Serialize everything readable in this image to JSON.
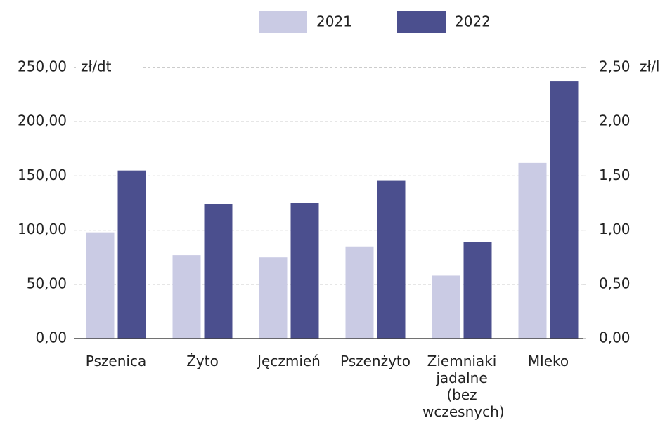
{
  "chart_data": {
    "type": "bar",
    "categories": [
      "Pszenica",
      "Żyto",
      "Jęczmień",
      "Pszenżyto",
      "Ziemniaki jadalne (bez wczesnych)",
      "Mleko"
    ],
    "category_axis": [
      "y",
      "y",
      "y",
      "y",
      "y",
      "y2"
    ],
    "series": [
      {
        "name": "2021",
        "color": "#cacbe4",
        "values": [
          98,
          77,
          75,
          85,
          58,
          1.62
        ]
      },
      {
        "name": "2022",
        "color": "#4b4f8e",
        "values": [
          155,
          124,
          125,
          146,
          89,
          2.37
        ]
      }
    ],
    "y_unit": "zł/dt",
    "y2_unit": "zł/l",
    "ylim": [
      0,
      250
    ],
    "yticks": [
      {
        "value": 0,
        "label": "0,00"
      },
      {
        "value": 50,
        "label": "50,00"
      },
      {
        "value": 100,
        "label": "100,00"
      },
      {
        "value": 150,
        "label": "150,00"
      },
      {
        "value": 200,
        "label": "200,00"
      },
      {
        "value": 250,
        "label": "250,00"
      }
    ],
    "y2lim": [
      0,
      2.5
    ],
    "y2ticks": [
      {
        "value": 0,
        "label": "0,00"
      },
      {
        "value": 0.5,
        "label": "0,50"
      },
      {
        "value": 1,
        "label": "1,00"
      },
      {
        "value": 1.5,
        "label": "1,50"
      },
      {
        "value": 2,
        "label": "2,00"
      },
      {
        "value": 2.5,
        "label": "2,50"
      }
    ],
    "grid": true
  }
}
